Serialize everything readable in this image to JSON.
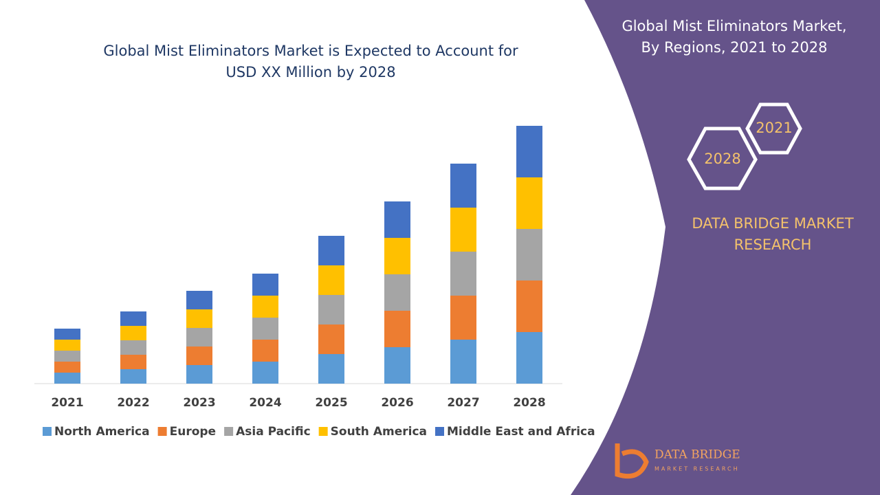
{
  "chart_data": {
    "type": "stacked_bar",
    "title": [
      "Global Mist Eliminators Market is Expected to Account for",
      "USD XX Million by 2028"
    ],
    "categories": [
      "2021",
      "2022",
      "2023",
      "2024",
      "2025",
      "2026",
      "2027",
      "2028"
    ],
    "series": [
      {
        "name": "North America",
        "color": "#5b9bd5",
        "values": [
          16,
          21,
          27,
          32,
          43,
          53,
          64,
          75
        ]
      },
      {
        "name": "Europe",
        "color": "#ed7d31",
        "values": [
          16,
          21,
          27,
          32,
          43,
          53,
          64,
          75
        ]
      },
      {
        "name": "Asia Pacific",
        "color": "#a5a5a5",
        "values": [
          16,
          21,
          27,
          32,
          43,
          53,
          64,
          75
        ]
      },
      {
        "name": "South America",
        "color": "#ffc000",
        "values": [
          16,
          21,
          27,
          32,
          43,
          53,
          64,
          75
        ]
      },
      {
        "name": "Middle East and Africa",
        "color": "#4472c4",
        "values": [
          16,
          21,
          27,
          32,
          43,
          53,
          64,
          75
        ]
      }
    ],
    "ylim": [
      0,
      400
    ],
    "grid": false,
    "legend": "bottom"
  },
  "side_panel": {
    "title": [
      "Global Mist Eliminators Market,",
      "By Regions, 2021 to 2028"
    ],
    "hexagons": [
      "2021",
      "2028"
    ],
    "brand": [
      "DATA BRIDGE MARKET",
      "RESEARCH"
    ],
    "logo": [
      "DATA BRIDGE",
      "MARKET RESEARCH"
    ]
  }
}
